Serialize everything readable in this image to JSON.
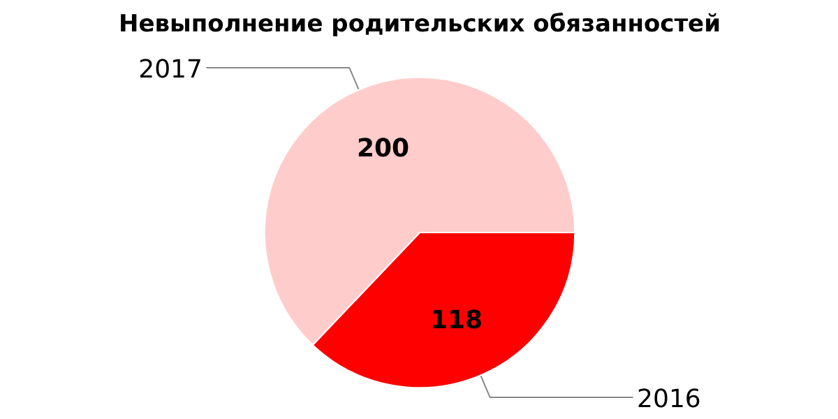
{
  "chart_data": {
    "type": "pie",
    "title": "Невыполнение родительских обязанностей",
    "categories": [
      "2016",
      "2017"
    ],
    "values": [
      118,
      200
    ],
    "colors": [
      "#ff0000",
      "#ffcccc"
    ],
    "data_labels": true
  }
}
